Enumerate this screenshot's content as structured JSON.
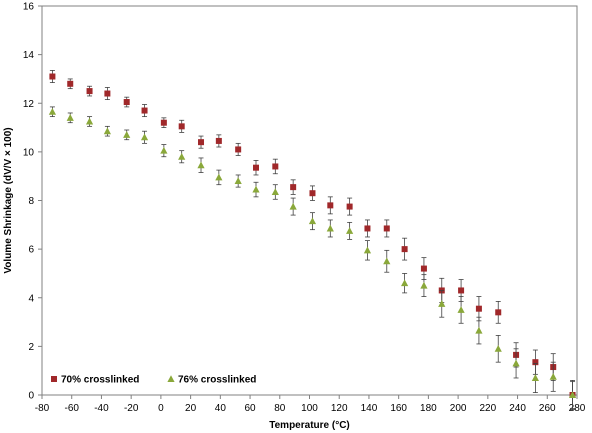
{
  "chart_data": {
    "type": "scatter",
    "title": "",
    "xlabel": "Temperature (°C)",
    "ylabel": "Volume Shrinkage (dV/V × 100)",
    "xlim": [
      -80,
      280
    ],
    "ylim": [
      0,
      16
    ],
    "xticks": [
      "-80",
      "-60",
      "-40",
      "-20",
      "0",
      "20",
      "40",
      "60",
      "80",
      "100",
      "120",
      "140",
      "160",
      "180",
      "200",
      "220",
      "240",
      "260",
      "280"
    ],
    "yticks": [
      "0",
      "2",
      "4",
      "6",
      "8",
      "10",
      "12",
      "14",
      "16"
    ],
    "grid": false,
    "legend_position": "bottom-left",
    "error_bars": true,
    "series": [
      {
        "name": "70% crosslinked",
        "color": "#a0282a",
        "marker": "square",
        "points": [
          {
            "x": -73,
            "y": 13.1,
            "err": 0.25
          },
          {
            "x": -61,
            "y": 12.8,
            "err": 0.2
          },
          {
            "x": -48,
            "y": 12.5,
            "err": 0.2
          },
          {
            "x": -36,
            "y": 12.4,
            "err": 0.25
          },
          {
            "x": -23,
            "y": 12.05,
            "err": 0.2
          },
          {
            "x": -11,
            "y": 11.7,
            "err": 0.25
          },
          {
            "x": 2,
            "y": 11.2,
            "err": 0.2
          },
          {
            "x": 14,
            "y": 11.05,
            "err": 0.25
          },
          {
            "x": 27,
            "y": 10.4,
            "err": 0.25
          },
          {
            "x": 39,
            "y": 10.45,
            "err": 0.25
          },
          {
            "x": 52,
            "y": 10.1,
            "err": 0.25
          },
          {
            "x": 64,
            "y": 9.35,
            "err": 0.3
          },
          {
            "x": 77,
            "y": 9.4,
            "err": 0.3
          },
          {
            "x": 89,
            "y": 8.55,
            "err": 0.3
          },
          {
            "x": 102,
            "y": 8.3,
            "err": 0.3
          },
          {
            "x": 114,
            "y": 7.8,
            "err": 0.35
          },
          {
            "x": 127,
            "y": 7.75,
            "err": 0.35
          },
          {
            "x": 139,
            "y": 6.85,
            "err": 0.35
          },
          {
            "x": 152,
            "y": 6.85,
            "err": 0.35
          },
          {
            "x": 164,
            "y": 6.0,
            "err": 0.45
          },
          {
            "x": 177,
            "y": 5.2,
            "err": 0.45
          },
          {
            "x": 189,
            "y": 4.3,
            "err": 0.5
          },
          {
            "x": 202,
            "y": 4.3,
            "err": 0.45
          },
          {
            "x": 214,
            "y": 3.55,
            "err": 0.5
          },
          {
            "x": 227,
            "y": 3.4,
            "err": 0.45
          },
          {
            "x": 239,
            "y": 1.65,
            "err": 0.5
          },
          {
            "x": 252,
            "y": 1.35,
            "err": 0.5
          },
          {
            "x": 264,
            "y": 1.15,
            "err": 0.55
          },
          {
            "x": 277,
            "y": 0.0,
            "err": 0.55
          }
        ]
      },
      {
        "name": "76% crosslinked",
        "color": "#8aa83a",
        "marker": "triangle",
        "points": [
          {
            "x": -73,
            "y": 11.65,
            "err": 0.2
          },
          {
            "x": -61,
            "y": 11.4,
            "err": 0.2
          },
          {
            "x": -48,
            "y": 11.25,
            "err": 0.2
          },
          {
            "x": -36,
            "y": 10.85,
            "err": 0.2
          },
          {
            "x": -23,
            "y": 10.7,
            "err": 0.2
          },
          {
            "x": -11,
            "y": 10.6,
            "err": 0.25
          },
          {
            "x": 2,
            "y": 10.05,
            "err": 0.25
          },
          {
            "x": 14,
            "y": 9.8,
            "err": 0.25
          },
          {
            "x": 27,
            "y": 9.45,
            "err": 0.3
          },
          {
            "x": 39,
            "y": 8.95,
            "err": 0.3
          },
          {
            "x": 52,
            "y": 8.8,
            "err": 0.25
          },
          {
            "x": 64,
            "y": 8.45,
            "err": 0.3
          },
          {
            "x": 77,
            "y": 8.35,
            "err": 0.3
          },
          {
            "x": 89,
            "y": 7.75,
            "err": 0.35
          },
          {
            "x": 102,
            "y": 7.15,
            "err": 0.35
          },
          {
            "x": 114,
            "y": 6.85,
            "err": 0.35
          },
          {
            "x": 127,
            "y": 6.75,
            "err": 0.35
          },
          {
            "x": 139,
            "y": 5.95,
            "err": 0.4
          },
          {
            "x": 152,
            "y": 5.5,
            "err": 0.45
          },
          {
            "x": 164,
            "y": 4.6,
            "err": 0.4
          },
          {
            "x": 177,
            "y": 4.5,
            "err": 0.45
          },
          {
            "x": 189,
            "y": 3.75,
            "err": 0.55
          },
          {
            "x": 202,
            "y": 3.5,
            "err": 0.55
          },
          {
            "x": 214,
            "y": 2.65,
            "err": 0.55
          },
          {
            "x": 227,
            "y": 1.9,
            "err": 0.55
          },
          {
            "x": 239,
            "y": 1.3,
            "err": 0.6
          },
          {
            "x": 252,
            "y": 0.7,
            "err": 0.6
          },
          {
            "x": 264,
            "y": 0.75,
            "err": 0.6
          },
          {
            "x": 277,
            "y": 0.0,
            "err": 0.6
          }
        ]
      }
    ]
  }
}
